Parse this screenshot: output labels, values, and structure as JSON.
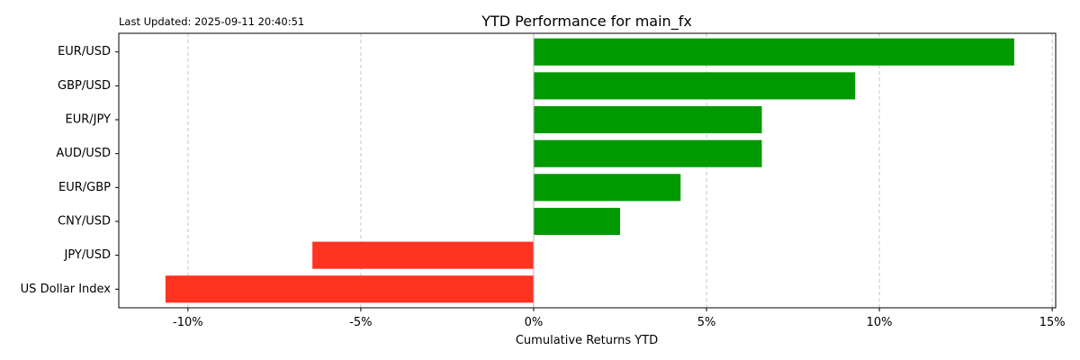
{
  "chart_data": {
    "type": "bar",
    "orientation": "horizontal",
    "title": "YTD Performance for main_fx",
    "subtitle": "Last Updated: 2025-09-11 20:40:51",
    "xlabel": "Cumulative Returns YTD",
    "ylabel": "",
    "categories": [
      "EUR/USD",
      "GBP/USD",
      "EUR/JPY",
      "AUD/USD",
      "EUR/GBP",
      "CNY/USD",
      "JPY/USD",
      "US Dollar Index"
    ],
    "values": [
      13.9,
      9.3,
      6.6,
      6.6,
      4.25,
      2.5,
      -6.4,
      -10.65
    ],
    "xlim": [
      -12,
      15.1
    ],
    "xticks": [
      -10,
      -5,
      0,
      5,
      10,
      15
    ],
    "xtick_labels": [
      "-10%",
      "-5%",
      "0%",
      "5%",
      "10%",
      "15%"
    ],
    "grid": "x-dashed",
    "colors": {
      "positive": "#009900",
      "negative": "#ff3322",
      "grid": "#c8c8c8",
      "zero_line": "#bbbbbb",
      "axes": "#000000"
    }
  }
}
